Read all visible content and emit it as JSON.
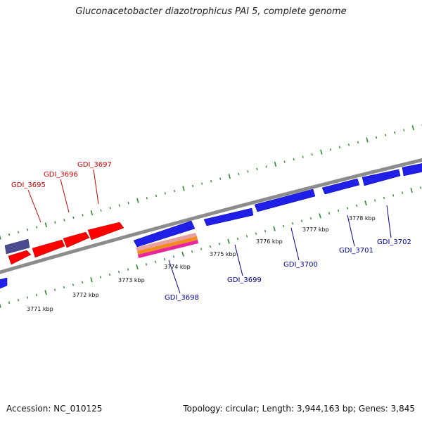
{
  "title": "Gluconacetobacter diazotrophicus PAI 5, complete genome",
  "footer": {
    "accession": "Accession: NC_010125",
    "topology": "Topology: circular; Length: 3,944,163 bp; Genes: 3,845"
  },
  "colors": {
    "forward_gene": "#ff0000",
    "reverse_gene": "#1f1fe8",
    "forward_label": "#cc0000",
    "reverse_label": "#00009a",
    "backbone": "#8c8c8c",
    "tick": "#2e8b2e",
    "dark_feature": "#4b4b8f"
  },
  "scale": {
    "ticks": [
      {
        "label": "3771 kbp"
      },
      {
        "label": "3772 kbp"
      },
      {
        "label": "3773 kbp"
      },
      {
        "label": "3774 kbp"
      },
      {
        "label": "3775 kbp"
      },
      {
        "label": "3776 kbp"
      },
      {
        "label": "3777 kbp"
      },
      {
        "label": "3778 kbp"
      }
    ]
  },
  "genes": {
    "forward": [
      {
        "label": "GDI_3695"
      },
      {
        "label": "GDI_3696"
      },
      {
        "label": "GDI_3697"
      }
    ],
    "reverse": [
      {
        "label": "GDI_3698"
      },
      {
        "label": "GDI_3699"
      },
      {
        "label": "GDI_3700"
      },
      {
        "label": "GDI_3701"
      },
      {
        "label": "GDI_3702"
      }
    ]
  }
}
